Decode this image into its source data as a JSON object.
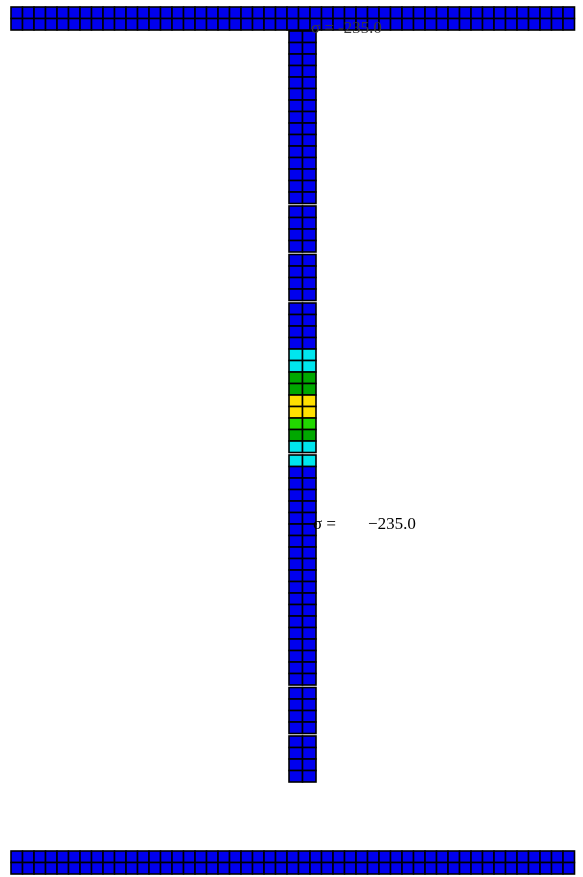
{
  "colors": {
    "background": "#ffffff",
    "cell_border": "#000000",
    "gap": "#ffffff",
    "stress_scale": {
      "blue": "#0000ee",
      "cyan": "#00e6ee",
      "green": "#00a800",
      "light_green": "#22d800",
      "yellow": "#ffe000"
    }
  },
  "labels": {
    "top": {
      "symbol": "σ =",
      "value": "-235.0"
    },
    "middle": {
      "symbol": "σ =",
      "value": "−235.0"
    }
  },
  "section": {
    "shape": "I-beam",
    "top_flange": {
      "cells_across": 49,
      "cells_through": 2,
      "color": "blue"
    },
    "bottom_flange": {
      "cells_across": 49,
      "cells_through": 2,
      "color": "blue"
    },
    "web": {
      "cells_across": 2,
      "segments": [
        {
          "colors": [
            "blue",
            "blue",
            "blue",
            "blue",
            "blue",
            "blue",
            "blue",
            "blue",
            "blue",
            "blue",
            "blue",
            "blue",
            "blue",
            "blue",
            "blue"
          ]
        },
        {
          "colors": [
            "blue",
            "blue",
            "blue",
            "blue"
          ]
        },
        {
          "colors": [
            "blue",
            "blue",
            "blue",
            "blue"
          ]
        },
        {
          "colors": [
            "blue",
            "blue",
            "blue",
            "blue",
            "cyan",
            "cyan",
            "green",
            "green",
            "yellow",
            "yellow",
            "light_green",
            "green",
            "cyan"
          ]
        },
        {
          "colors": [
            "cyan",
            "blue",
            "blue",
            "blue",
            "blue",
            "blue",
            "blue",
            "blue",
            "blue",
            "blue",
            "blue",
            "blue",
            "blue",
            "blue",
            "blue",
            "blue",
            "blue",
            "blue",
            "blue",
            "blue"
          ]
        },
        {
          "colors": [
            "blue",
            "blue",
            "blue",
            "blue"
          ]
        },
        {
          "colors": [
            "blue",
            "blue",
            "blue",
            "blue"
          ]
        }
      ]
    }
  }
}
